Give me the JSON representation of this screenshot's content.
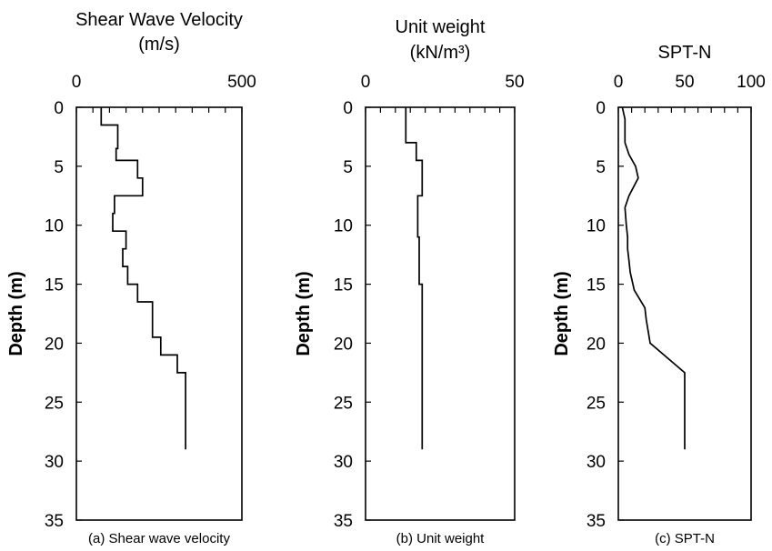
{
  "chart_data": [
    {
      "type": "line",
      "title": "Shear Wave Velocity",
      "unit_label": "(m/s)",
      "caption": "(a) Shear wave velocity",
      "ylabel": "Depth (m)",
      "xlim": [
        0,
        500
      ],
      "ylim": [
        0,
        35
      ],
      "xticks": [
        "0",
        "500"
      ],
      "yticks": [
        "0",
        "5",
        "10",
        "15",
        "20",
        "25",
        "30",
        "35"
      ],
      "y_inverted": true,
      "x_axis_position": "top",
      "step": true,
      "series": [
        {
          "x": [
            75,
            75,
            125,
            125,
            120,
            120,
            185,
            185,
            200,
            200,
            115,
            115,
            110,
            110,
            150,
            150,
            140,
            140,
            155,
            155,
            185,
            185,
            230,
            230,
            255,
            255,
            305,
            305,
            330,
            330
          ],
          "y": [
            0,
            1.5,
            1.5,
            3.5,
            3.5,
            4.5,
            4.5,
            6.0,
            6.0,
            7.5,
            7.5,
            9.0,
            9.0,
            10.5,
            10.5,
            12.0,
            12.0,
            13.5,
            13.5,
            15.0,
            15.0,
            16.5,
            16.5,
            19.5,
            19.5,
            21.0,
            21.0,
            22.5,
            22.5,
            29.0
          ]
        }
      ]
    },
    {
      "type": "line",
      "title": "Unit weight",
      "unit_label": "(kN/m³)",
      "caption": "(b) Unit weight",
      "ylabel": "Depth (m)",
      "xlim": [
        0,
        50
      ],
      "ylim": [
        0,
        35
      ],
      "xticks": [
        "0",
        "50"
      ],
      "yticks": [
        "0",
        "5",
        "10",
        "15",
        "20",
        "25",
        "30",
        "35"
      ],
      "y_inverted": true,
      "x_axis_position": "top",
      "step": true,
      "series": [
        {
          "x": [
            13.5,
            13.5,
            17.0,
            17.0,
            19.0,
            19.0,
            17.5,
            17.5,
            18.0,
            18.0,
            19.0,
            19.0
          ],
          "y": [
            0,
            3.0,
            3.0,
            4.5,
            4.5,
            7.5,
            7.5,
            11.0,
            11.0,
            15.0,
            15.0,
            29.0
          ]
        }
      ]
    },
    {
      "type": "line",
      "title": "SPT-N",
      "caption": "(c) SPT-N",
      "ylabel": "Depth (m)",
      "xlim": [
        0,
        100
      ],
      "ylim": [
        0,
        35
      ],
      "xticks": [
        "0",
        "50",
        "100"
      ],
      "yticks": [
        "0",
        "5",
        "10",
        "15",
        "20",
        "25",
        "30",
        "35"
      ],
      "y_inverted": true,
      "x_axis_position": "top",
      "step": false,
      "series": [
        {
          "x": [
            3,
            5,
            5,
            8,
            13,
            15,
            8,
            5,
            6,
            7,
            7,
            8,
            9,
            12,
            20,
            21,
            24,
            50,
            50
          ],
          "y": [
            0,
            1,
            3,
            4,
            5,
            6,
            7.5,
            8.5,
            10,
            11,
            12,
            13,
            14,
            15.5,
            17,
            18,
            20,
            22.5,
            29
          ]
        }
      ]
    }
  ]
}
